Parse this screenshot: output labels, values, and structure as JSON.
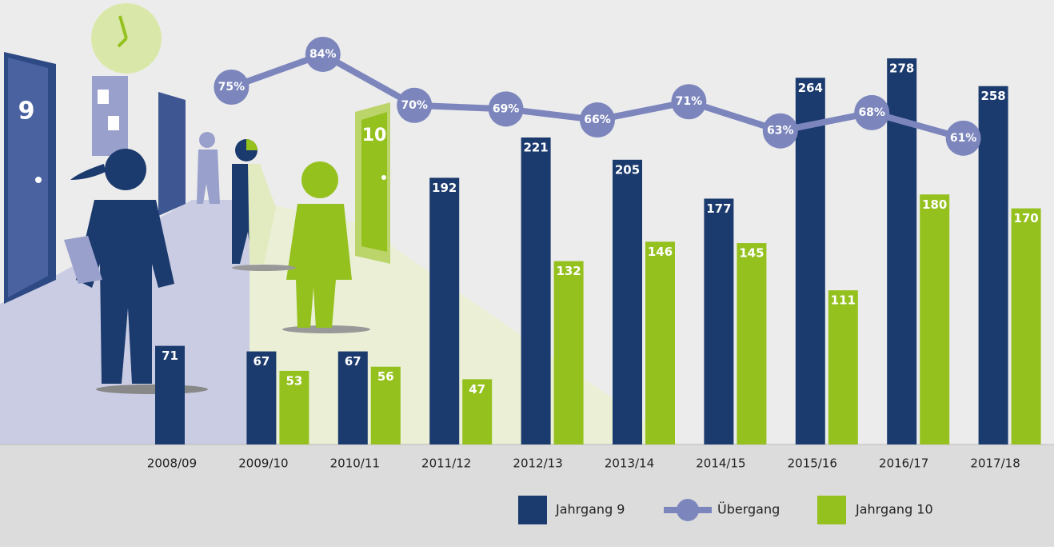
{
  "chart_data": {
    "type": "bar",
    "categories": [
      "2008/09",
      "2009/10",
      "2010/11",
      "2011/12",
      "2012/13",
      "2013/14",
      "2014/15",
      "2015/16",
      "2016/17",
      "2017/18"
    ],
    "series": [
      {
        "name": "Jahrgang 9",
        "color": "#1b3a6d",
        "values": [
          71,
          67,
          67,
          192,
          221,
          205,
          177,
          264,
          278,
          258
        ]
      },
      {
        "name": "Übergang",
        "color": "#7c86bd",
        "type": "line",
        "axis": "y2",
        "values": [
          null,
          75,
          84,
          70,
          69,
          66,
          71,
          63,
          68,
          61
        ],
        "value_labels": [
          null,
          "75%",
          "84%",
          "70%",
          "69%",
          "66%",
          "71%",
          "63%",
          "68%",
          "61%"
        ]
      },
      {
        "name": "Jahrgang 10",
        "color": "#95c11f",
        "values": [
          null,
          53,
          56,
          47,
          132,
          146,
          145,
          111,
          180,
          170
        ]
      }
    ],
    "ylim": [
      0,
      320
    ],
    "y2lim": [
      0,
      100
    ],
    "grid": false
  }
}
